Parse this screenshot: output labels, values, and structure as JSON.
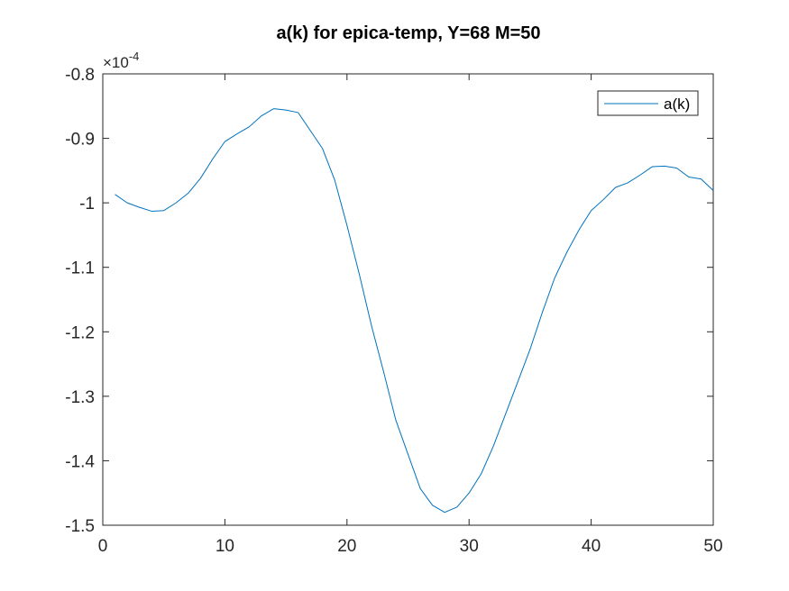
{
  "chart_data": {
    "type": "line",
    "title": "a(k) for epica-temp, Y=68 M=50",
    "xlabel": "",
    "ylabel": "",
    "xlim": [
      0,
      50
    ],
    "ylim": [
      -1.5,
      -0.8
    ],
    "y_exponent_base": "×10",
    "y_exponent_power": "-4",
    "x_ticks": [
      0,
      10,
      20,
      30,
      40,
      50
    ],
    "x_tick_labels": [
      "0",
      "10",
      "20",
      "30",
      "40",
      "50"
    ],
    "y_ticks": [
      -1.5,
      -1.4,
      -1.3,
      -1.2,
      -1.1,
      -1.0,
      -0.9,
      -0.8
    ],
    "y_tick_labels": [
      "-1.5",
      "-1.4",
      "-1.3",
      "-1.2",
      "-1.1",
      "-1",
      "-0.9",
      "-0.8"
    ],
    "grid": false,
    "legend_position": "top-right",
    "series": [
      {
        "name": "a(k)",
        "color": "#0072BD",
        "x": [
          1,
          2,
          3,
          4,
          5,
          6,
          7,
          8,
          9,
          10,
          11,
          12,
          13,
          14,
          15,
          16,
          17,
          18,
          19,
          20,
          21,
          22,
          23,
          24,
          25,
          26,
          27,
          28,
          29,
          30,
          31,
          32,
          33,
          34,
          35,
          36,
          37,
          38,
          39,
          40,
          41,
          42,
          43,
          44,
          45,
          46,
          47,
          48,
          49,
          50
        ],
        "y": [
          -0.987,
          -1.0,
          -1.007,
          -1.013,
          -1.012,
          -1.0,
          -0.985,
          -0.962,
          -0.932,
          -0.905,
          -0.893,
          -0.882,
          -0.865,
          -0.854,
          -0.856,
          -0.86,
          -0.888,
          -0.916,
          -0.965,
          -1.035,
          -1.11,
          -1.19,
          -1.262,
          -1.337,
          -1.39,
          -1.443,
          -1.469,
          -1.48,
          -1.472,
          -1.45,
          -1.42,
          -1.377,
          -1.327,
          -1.277,
          -1.227,
          -1.17,
          -1.117,
          -1.077,
          -1.042,
          -1.012,
          -0.995,
          -0.976,
          -0.969,
          -0.957,
          -0.944,
          -0.943,
          -0.946,
          -0.96,
          -0.963,
          -0.981
        ]
      }
    ]
  }
}
